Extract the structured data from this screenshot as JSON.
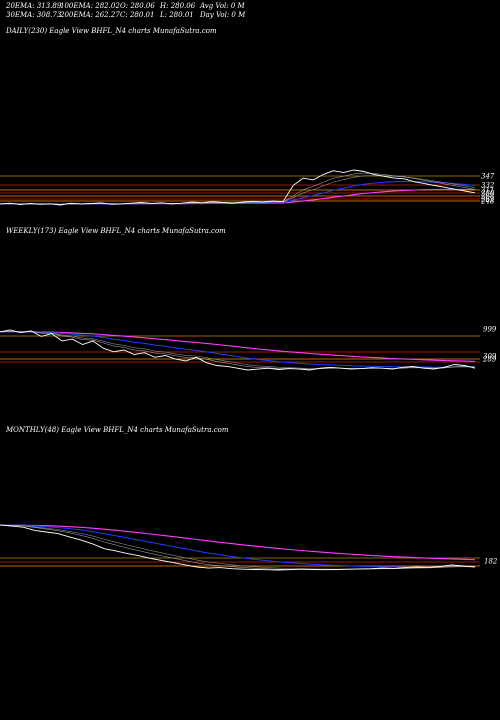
{
  "header": {
    "ema20": "20EMA: 313.89",
    "ema30": "30EMA: 308.73",
    "ema100": "100EMA: 282.02",
    "ema200": "200EMA: 262.27",
    "open": "O: 280.06",
    "close": "C: 280.01",
    "high": "H: 280.06",
    "low": "L: 280.01",
    "avg_vol": "Avg Vol: 0  M",
    "day_vol": "Day Vol: 0  M"
  },
  "colors": {
    "background": "#000000",
    "price": "#ffffff",
    "ema_short": "#1e3cff",
    "ema_long": "#ff3cff",
    "level_line": "#b8860b",
    "channel_red": "#cc2200",
    "channel_orange": "#ff8800"
  },
  "chart_data": [
    {
      "type": "line",
      "panel_label": "DAILY(230) Eagle  View  BHFL_N4  charts MunafaSutra.com",
      "tick_labels": [
        "347",
        "332",
        "311",
        "280",
        "268",
        "262",
        "248"
      ],
      "tick_values": [
        347,
        332,
        311,
        280,
        268,
        262,
        248
      ],
      "series": [
        {
          "values": [
            250,
            252,
            248,
            251,
            249,
            250,
            247,
            252,
            250,
            251,
            253,
            249,
            250,
            252,
            254,
            251,
            253,
            250,
            252,
            255,
            253,
            256,
            254,
            252,
            255,
            257,
            255,
            258,
            256,
            300,
            320,
            315,
            330,
            340,
            335,
            342,
            338,
            330,
            325,
            320,
            318,
            310,
            305,
            300,
            295,
            290,
            285,
            280
          ]
        }
      ]
    },
    {
      "type": "line",
      "panel_label": "WEEKLY(173) Eagle  View  BHFL_N4  charts MunafaSutra.com",
      "tick_labels": [
        "999",
        "309",
        "289"
      ],
      "tick_values": [
        999,
        309,
        289
      ],
      "series": [
        {
          "values": [
            700,
            720,
            690,
            710,
            650,
            680,
            600,
            620,
            560,
            600,
            520,
            480,
            500,
            450,
            470,
            420,
            440,
            400,
            380,
            420,
            360,
            330,
            320,
            300,
            280,
            290,
            300,
            285,
            295,
            290,
            280,
            300,
            310,
            300,
            290,
            295,
            305,
            300,
            290,
            310,
            320,
            300,
            290,
            310,
            340,
            330,
            300
          ]
        }
      ]
    },
    {
      "type": "line",
      "panel_label": "MONTHLY(48) Eagle  View  BHFL_N4  charts MunafaSutra.com",
      "tick_labels": [
        "182"
      ],
      "tick_values": [
        182
      ],
      "series": [
        {
          "values": [
            1000,
            980,
            960,
            900,
            870,
            840,
            780,
            720,
            650,
            560,
            520,
            470,
            430,
            380,
            340,
            300,
            260,
            220,
            200,
            210,
            190,
            180,
            175,
            170,
            165,
            170,
            180,
            175,
            170,
            175,
            180,
            185,
            190,
            200,
            195,
            210,
            220,
            215,
            230,
            260,
            240,
            220
          ]
        }
      ]
    }
  ]
}
